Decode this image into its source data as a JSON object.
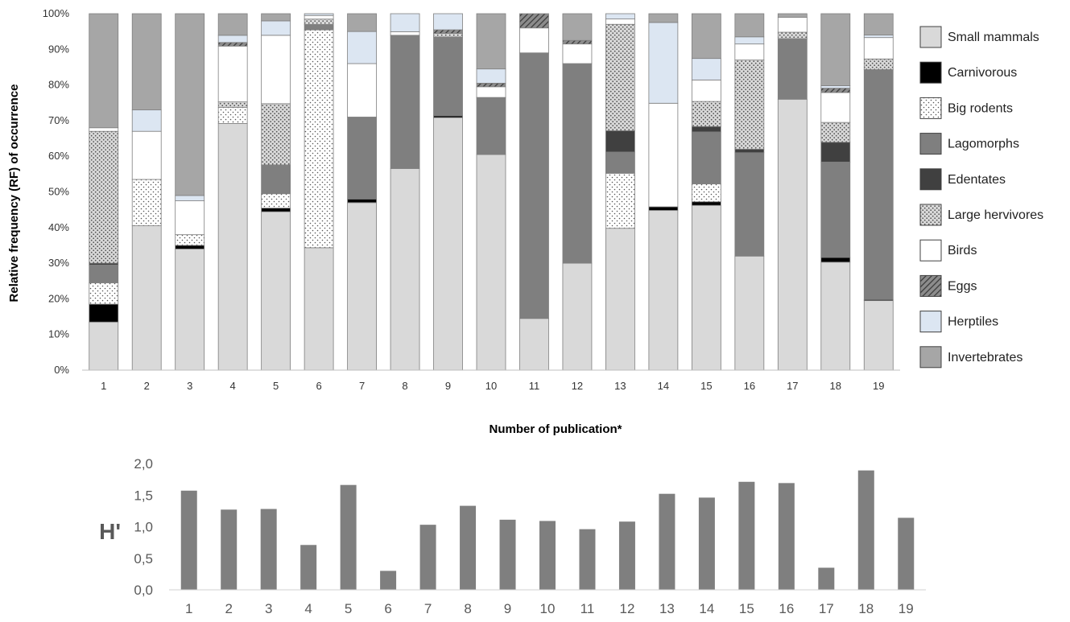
{
  "chart_data": [
    {
      "type": "bar",
      "stacked": true,
      "categories": [
        "1",
        "2",
        "3",
        "4",
        "5",
        "6",
        "7",
        "8",
        "9",
        "10",
        "11",
        "12",
        "13",
        "14",
        "15",
        "16",
        "17",
        "18",
        "19"
      ],
      "xlabel": "Number of publication*",
      "ylabel": "Relative frequency (RF) of occurrence",
      "ylim": [
        0,
        100
      ],
      "y_ticks": [
        "0%",
        "10%",
        "20%",
        "30%",
        "40%",
        "50%",
        "60%",
        "70%",
        "80%",
        "90%",
        "100%"
      ],
      "legend_position": "right",
      "grid": false,
      "series": [
        {
          "name": "Small mammals",
          "fill": "#d9d9d9",
          "pattern": "none",
          "values": [
            13.5,
            40.5,
            34,
            68.5,
            44,
            34,
            47,
            56,
            70.5,
            60.5,
            14.5,
            30,
            40,
            45.5,
            46,
            32,
            76,
            30,
            19.5
          ]
        },
        {
          "name": "Carnivorous",
          "fill": "#000000",
          "pattern": "none",
          "values": [
            5,
            0,
            1,
            0,
            1,
            0,
            1,
            0,
            0.5,
            0,
            0,
            0,
            0,
            1,
            1,
            0,
            0,
            1.3,
            0.3
          ]
        },
        {
          "name": "Big rodents",
          "fill": "#ffffff",
          "pattern": "dots",
          "values": [
            6,
            13,
            3,
            4.5,
            4,
            60.5,
            0,
            0,
            0,
            0,
            0,
            0,
            15.5,
            0,
            5,
            0,
            0,
            0,
            0
          ]
        },
        {
          "name": "Lagomorphs",
          "fill": "#7f7f7f",
          "pattern": "none",
          "values": [
            5,
            0,
            0,
            0,
            8,
            1.5,
            23,
            37,
            22,
            16,
            74.5,
            56,
            6,
            0,
            14.5,
            29,
            17,
            26.5,
            64.5
          ]
        },
        {
          "name": "Edentates",
          "fill": "#404040",
          "pattern": "none",
          "values": [
            0.5,
            0,
            0,
            0,
            0,
            0,
            0,
            0,
            0,
            0,
            0,
            0,
            6,
            0,
            1.5,
            1,
            0,
            5.5,
            0
          ]
        },
        {
          "name": "Large hervivores",
          "fill": "#d9d9d9",
          "pattern": "dots",
          "values": [
            37,
            0,
            0,
            1.5,
            17,
            1.5,
            0,
            0,
            1,
            0,
            0,
            0,
            30,
            0,
            7,
            25,
            1.8,
            5.5,
            3
          ]
        },
        {
          "name": "Birds",
          "fill": "#ffffff",
          "pattern": "none",
          "values": [
            1,
            13.5,
            9.5,
            15.5,
            19,
            1,
            15,
            1,
            0,
            3,
            7,
            5.5,
            1.5,
            29.5,
            6,
            4.5,
            4.2,
            8.3,
            6
          ]
        },
        {
          "name": "Eggs",
          "fill": "#595959",
          "pattern": "hatch",
          "values": [
            0,
            0,
            0,
            1,
            0,
            0,
            0,
            0,
            1,
            1,
            4,
            1,
            0,
            0,
            0,
            0,
            0,
            1.2,
            0
          ]
        },
        {
          "name": "Herptiles",
          "fill": "#dce6f2",
          "pattern": "none",
          "values": [
            0,
            6,
            1.5,
            2,
            4,
            0.5,
            9,
            5,
            4.5,
            4,
            0,
            0,
            1.5,
            23,
            6,
            2,
            0,
            0.7,
            0.7
          ]
        },
        {
          "name": "Invertebrates",
          "fill": "#a6a6a6",
          "pattern": "none",
          "values": [
            32,
            27,
            51,
            6,
            2,
            0,
            5,
            0,
            0,
            15.5,
            0,
            7.5,
            0,
            2.5,
            12.5,
            6.5,
            1,
            20,
            6
          ]
        }
      ]
    },
    {
      "type": "bar",
      "categories": [
        "1",
        "2",
        "3",
        "4",
        "5",
        "6",
        "7",
        "8",
        "9",
        "10",
        "11",
        "12",
        "13",
        "14",
        "15",
        "16",
        "17",
        "18",
        "19"
      ],
      "ylabel": "H'",
      "ylim": [
        0,
        2
      ],
      "y_ticks": [
        "0,0",
        "0,5",
        "1,0",
        "1,5",
        "2,0"
      ],
      "grid": false,
      "color": "#7f7f7f",
      "values": [
        1.57,
        1.27,
        1.28,
        0.71,
        1.66,
        0.3,
        1.03,
        1.33,
        1.11,
        1.09,
        0.96,
        1.08,
        1.52,
        1.46,
        1.71,
        1.69,
        0.35,
        1.89,
        1.14
      ]
    }
  ]
}
